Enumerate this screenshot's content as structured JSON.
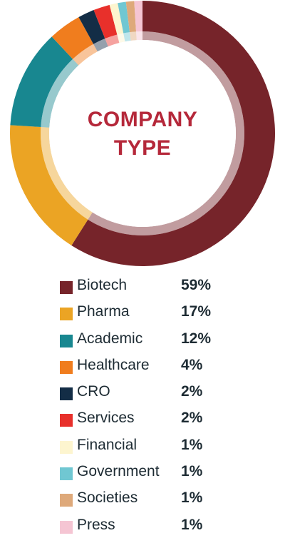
{
  "chart_data": {
    "type": "pie",
    "title": "COMPANY TYPE",
    "categories": [
      "Biotech",
      "Pharma",
      "Academic",
      "Healthcare",
      "CRO",
      "Services",
      "Financial",
      "Government",
      "Societies",
      "Press"
    ],
    "values": [
      59,
      17,
      12,
      4,
      2,
      2,
      1,
      1,
      1,
      1
    ],
    "value_labels": [
      "59%",
      "17%",
      "12%",
      "4%",
      "2%",
      "2%",
      "1%",
      "1%",
      "1%",
      "1%"
    ],
    "colors": [
      "#76242a",
      "#eba424",
      "#188790",
      "#f07d1e",
      "#132d46",
      "#e8302b",
      "#fdf5cf",
      "#70c7d2",
      "#dea97a",
      "#f5c5d3"
    ],
    "legend_position": "bottom",
    "style": "donut"
  },
  "center_title": {
    "line1": "COMPANY",
    "line2": "TYPE"
  }
}
